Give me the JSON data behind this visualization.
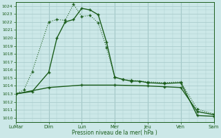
{
  "background_color": "#cce8e8",
  "grid_color": "#aacccc",
  "line_color": "#1a5c1a",
  "ylabel": "Pression niveau de la mer( hPa )",
  "xlabels": [
    "LuMar",
    "Dim",
    "Lun",
    "Mer",
    "Jeu",
    "Ven",
    "Sam"
  ],
  "x_ticks": [
    0,
    2,
    4,
    6,
    8,
    10,
    12
  ],
  "ylim": [
    1009.5,
    1024.5
  ],
  "yticks": [
    1010,
    1011,
    1012,
    1013,
    1014,
    1015,
    1016,
    1017,
    1018,
    1019,
    1020,
    1021,
    1022,
    1023,
    1024
  ],
  "line1_x": [
    0,
    0.5,
    1,
    2,
    2.5,
    3,
    3.5,
    4,
    4.5,
    5,
    5.5,
    6,
    6.5,
    7,
    8,
    9,
    10,
    11,
    12
  ],
  "line1_y": [
    1013,
    1013.5,
    1015.8,
    1022,
    1022.3,
    1022.2,
    1024.2,
    1022.7,
    1022.8,
    1021.9,
    1018.8,
    1015.1,
    1014.8,
    1014.7,
    1014.5,
    1014.4,
    1014.5,
    1011.1,
    1010.5
  ],
  "line2_x": [
    0,
    1,
    2,
    2.5,
    3,
    3.5,
    4,
    4.5,
    5,
    5.5,
    6,
    6.5,
    7,
    7.5,
    8,
    9,
    10,
    11,
    12
  ],
  "line2_y": [
    1013,
    1013.3,
    1015.7,
    1020,
    1022.0,
    1022.3,
    1023.7,
    1023.5,
    1022.9,
    1019.5,
    1015.1,
    1014.8,
    1014.6,
    1014.6,
    1014.4,
    1014.3,
    1014.4,
    1010.3,
    1010.2
  ],
  "line3_x": [
    0,
    2,
    4,
    6,
    8,
    9,
    10,
    11,
    12
  ],
  "line3_y": [
    1013,
    1013.8,
    1014.1,
    1014.1,
    1014.0,
    1013.9,
    1013.8,
    1010.8,
    1010.4
  ]
}
